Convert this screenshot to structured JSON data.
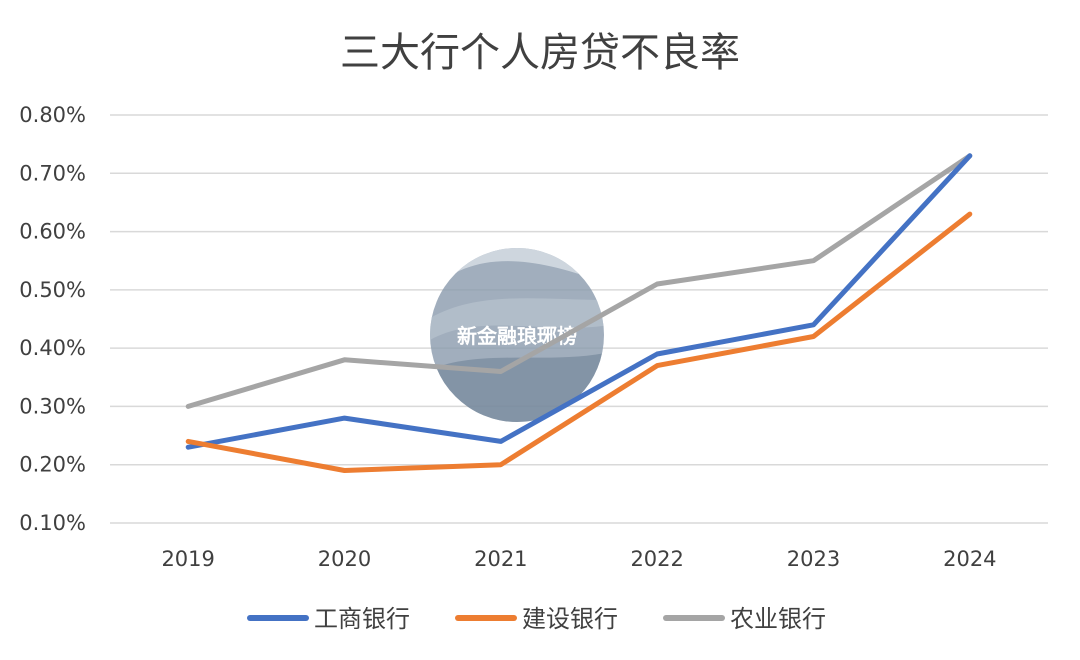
{
  "chart_data": {
    "type": "line",
    "title": "三大行个人房贷不良率",
    "categories": [
      "2019",
      "2020",
      "2021",
      "2022",
      "2023",
      "2024"
    ],
    "y_ticks": [
      "0.10%",
      "0.20%",
      "0.30%",
      "0.40%",
      "0.50%",
      "0.60%",
      "0.70%",
      "0.80%"
    ],
    "ylim": [
      0.1,
      0.8
    ],
    "grid": true,
    "legend_position": "bottom",
    "series": [
      {
        "name": "工商银行",
        "color": "#4472C4",
        "values": [
          0.23,
          0.28,
          0.24,
          0.39,
          0.44,
          0.73
        ]
      },
      {
        "name": "建设银行",
        "color": "#ED7D31",
        "values": [
          0.24,
          0.19,
          0.2,
          0.37,
          0.42,
          0.63
        ]
      },
      {
        "name": "农业银行",
        "color": "#A5A5A5",
        "values": [
          0.3,
          0.38,
          0.36,
          0.51,
          0.55,
          0.73
        ]
      }
    ]
  },
  "watermark": {
    "text": "新金融琅琊榜"
  }
}
